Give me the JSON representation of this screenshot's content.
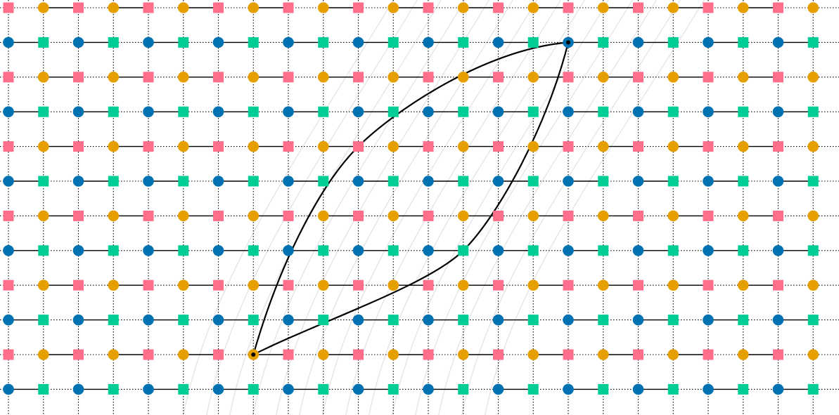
{
  "diagram": {
    "grid": {
      "columns": 24,
      "rows": 12,
      "pattern_row_a": [
        "dot-orange",
        "square-pink"
      ],
      "pattern_row_b": [
        "dot-blue",
        "square-green"
      ]
    },
    "colors": {
      "background": "#ffffff",
      "dot_orange": "#e69f00",
      "dot_blue": "#0072b2",
      "square_pink": "#ff6e8a",
      "square_green": "#00cc96",
      "grid_line": "#000000",
      "horizontal_link": "#000000",
      "path_main": "#000000",
      "path_faint": "#bdbdbd"
    },
    "highlighted_path": {
      "start": {
        "col": 7,
        "row": 10
      },
      "end": {
        "col": 16,
        "row": 1
      }
    }
  }
}
